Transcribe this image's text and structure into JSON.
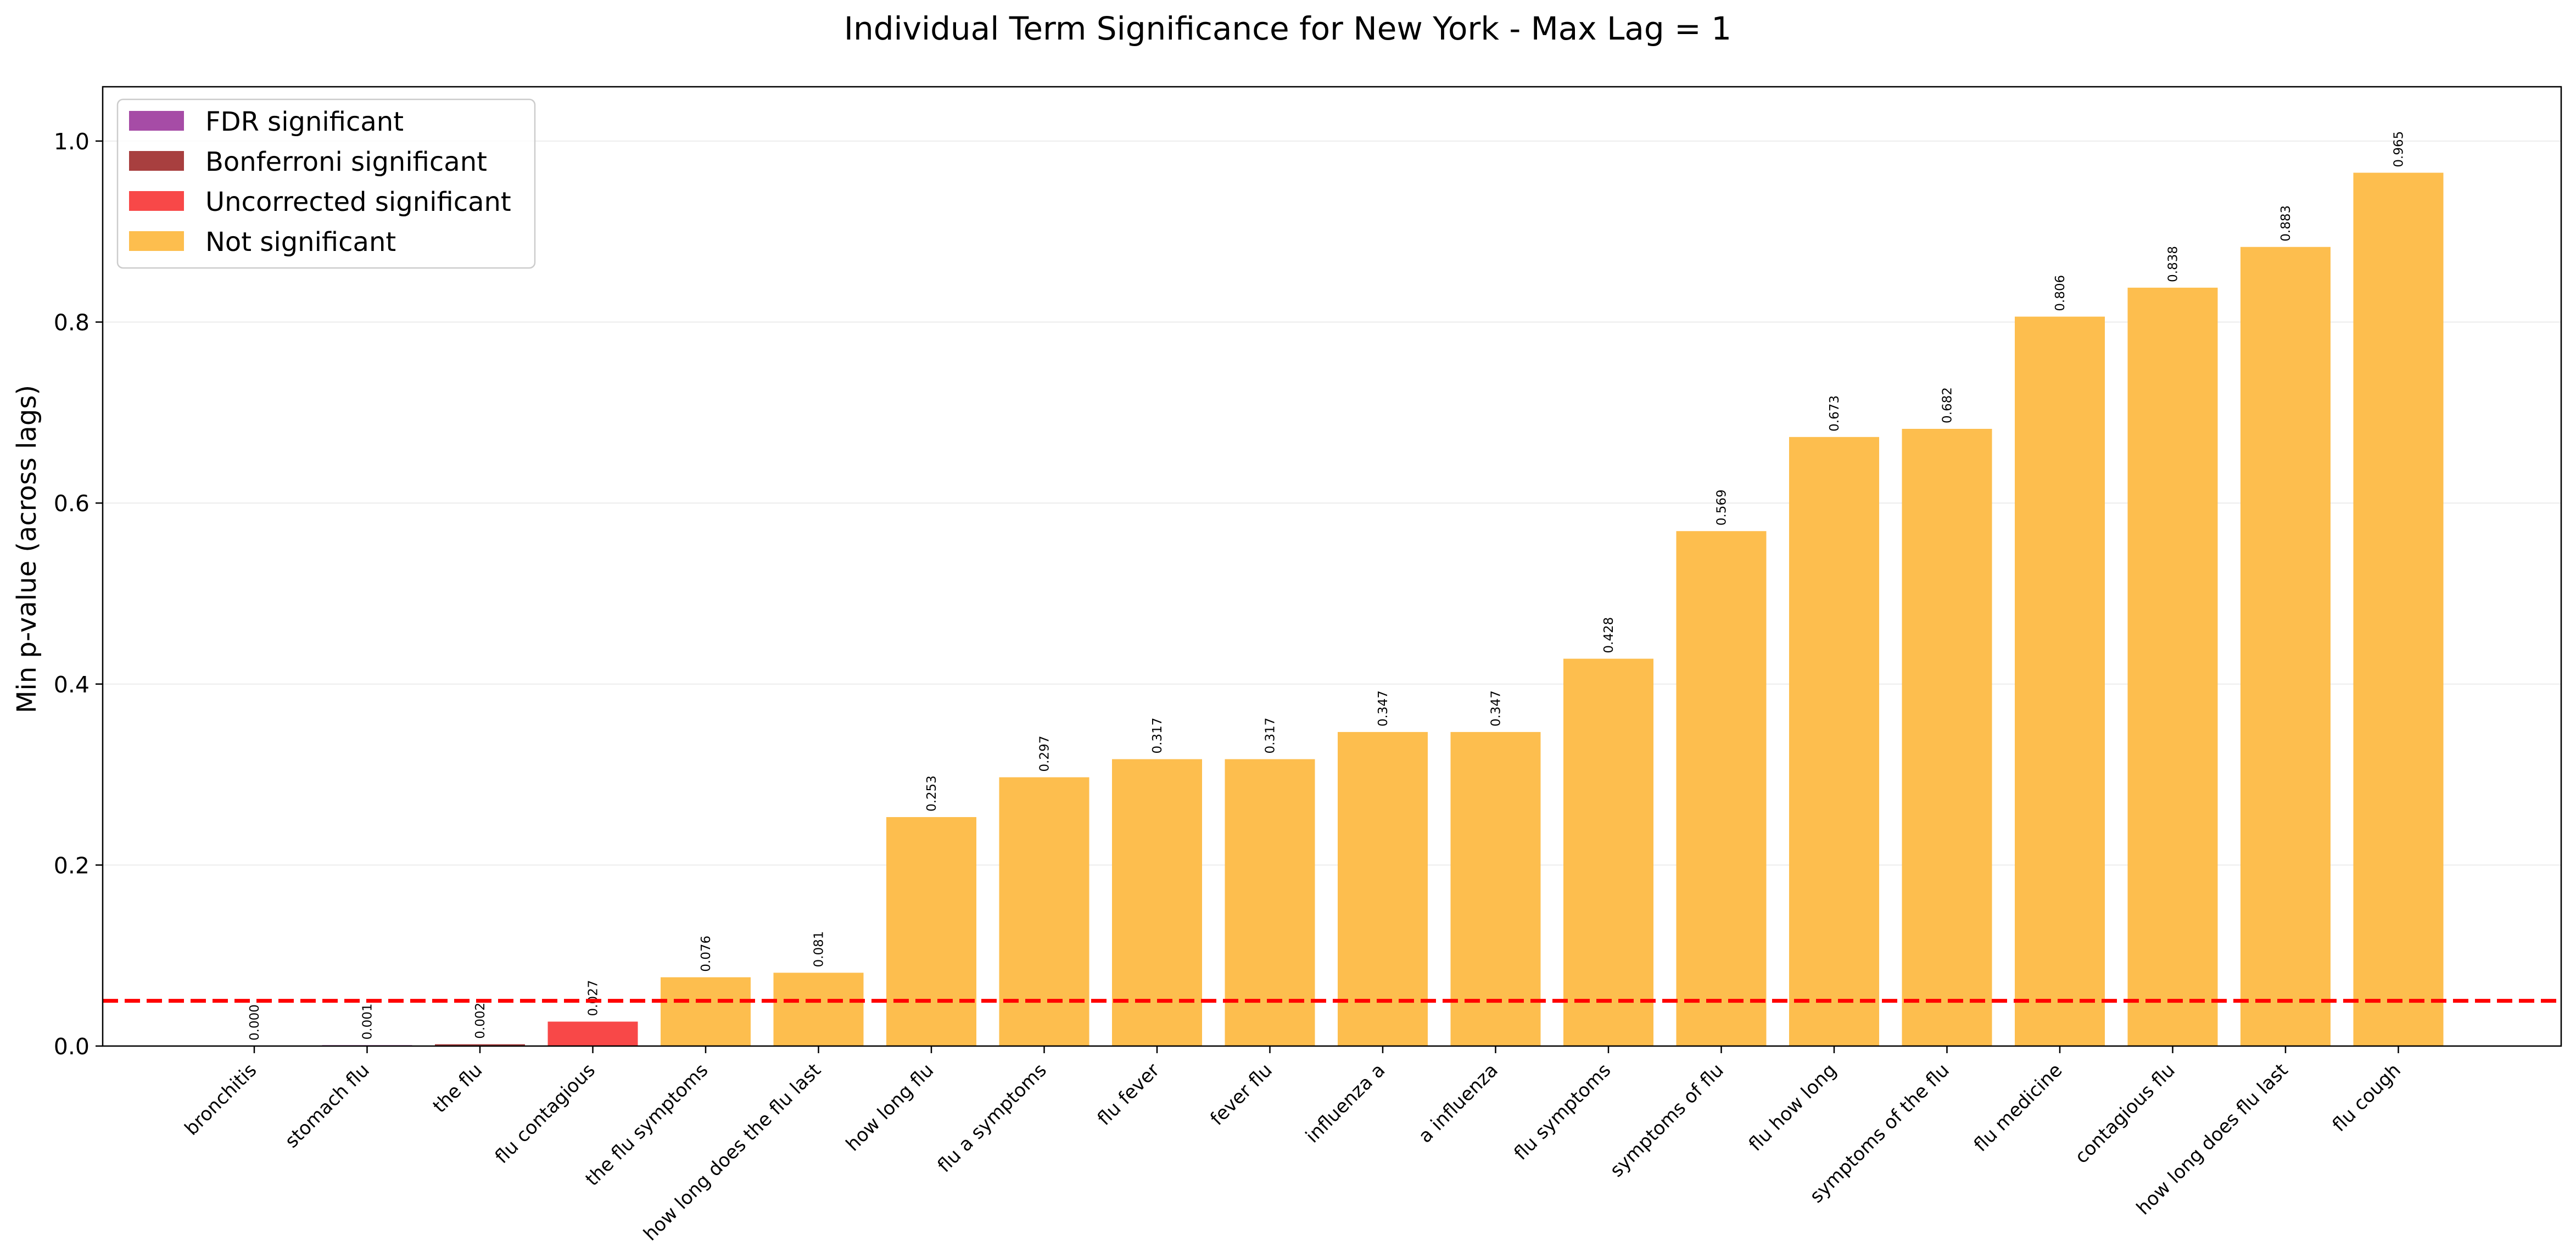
{
  "chart_data": {
    "type": "bar",
    "title": "Individual Term Significance for New York - Max Lag = 1",
    "xlabel": "",
    "ylabel": "Min p-value (across lags)",
    "ylim": [
      0,
      1.06
    ],
    "yticks": [
      "0.0",
      "0.2",
      "0.4",
      "0.6",
      "0.8",
      "1.0"
    ],
    "grid": "y",
    "threshold": 0.05,
    "legend_placement": "upper left",
    "legend": [
      {
        "name": "FDR significant",
        "color": "#a64ca6"
      },
      {
        "name": "Bonferroni significant",
        "color": "#a83f3f"
      },
      {
        "name": "Uncorrected significant",
        "color": "#f84848"
      },
      {
        "name": "Not significant",
        "color": "#fdbe4e"
      }
    ],
    "categories": [
      "bronchitis",
      "stomach flu",
      "the flu",
      "flu contagious",
      "the flu symptoms",
      "how long does the flu last",
      "how long flu",
      "flu a symptoms",
      "flu fever",
      "fever flu",
      "influenza a",
      "a influenza",
      "flu symptoms",
      "symptoms of flu",
      "flu how long",
      "symptoms of the flu",
      "flu medicine",
      "contagious flu",
      "how long does flu last",
      "flu cough"
    ],
    "values": [
      0.0,
      0.001,
      0.002,
      0.027,
      0.076,
      0.081,
      0.253,
      0.297,
      0.317,
      0.317,
      0.347,
      0.347,
      0.428,
      0.569,
      0.673,
      0.682,
      0.806,
      0.838,
      0.883,
      0.965
    ],
    "value_labels": [
      "0.000",
      "0.001",
      "0.002",
      "0.027",
      "0.076",
      "0.081",
      "0.253",
      "0.297",
      "0.317",
      "0.317",
      "0.347",
      "0.347",
      "0.428",
      "0.569",
      "0.673",
      "0.682",
      "0.806",
      "0.838",
      "0.883",
      "0.965"
    ],
    "significance": [
      0,
      0,
      1,
      2,
      3,
      3,
      3,
      3,
      3,
      3,
      3,
      3,
      3,
      3,
      3,
      3,
      3,
      3,
      3,
      3
    ]
  }
}
